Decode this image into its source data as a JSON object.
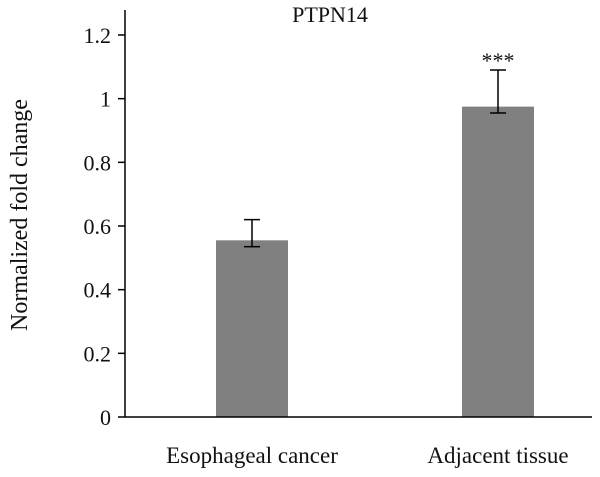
{
  "chart_data": {
    "type": "bar",
    "title": "PTPN14",
    "ylabel": "Normalized fold change",
    "xlabel": "",
    "categories": [
      "Esophageal cancer",
      "Adjacent tissue"
    ],
    "values": [
      0.555,
      0.975
    ],
    "error_lower": [
      0.535,
      0.955
    ],
    "error_upper": [
      0.62,
      1.09
    ],
    "annotations": [
      "",
      "***"
    ],
    "ylim": [
      0,
      1.25
    ],
    "yticks": [
      0,
      0.2,
      0.4,
      0.6,
      0.8,
      1,
      1.2
    ],
    "ytick_labels": [
      "0",
      "0.2",
      "0.4",
      "0.6",
      "0.8",
      "1",
      "1.2"
    ],
    "bar_color": "#808080",
    "axis_color": "#000000",
    "grid": false,
    "legend": "none"
  }
}
